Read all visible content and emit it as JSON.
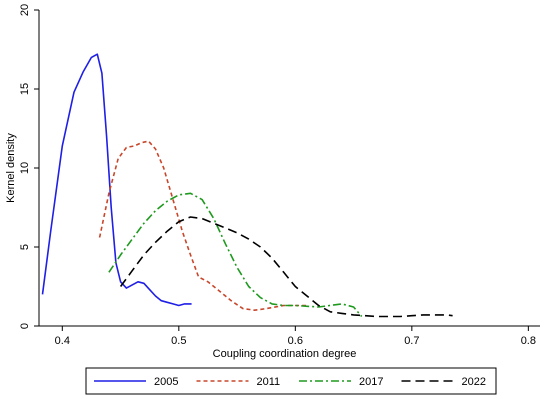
{
  "chart_data": {
    "type": "line",
    "title": "",
    "xlabel": "Coupling coordination degree",
    "ylabel": "Kernel density",
    "xlim": [
      0.38,
      0.81
    ],
    "ylim": [
      0,
      20
    ],
    "xticks": [
      "0.4",
      "0.5",
      "0.6",
      "0.7",
      "0.8"
    ],
    "yticks": [
      "0",
      "5",
      "10",
      "15",
      "20"
    ],
    "xtick_values": [
      0.4,
      0.5,
      0.6,
      0.7,
      0.8
    ],
    "ytick_values": [
      0,
      5,
      10,
      15,
      20
    ],
    "grid": false,
    "legend_position": "bottom",
    "series": [
      {
        "name": "2005",
        "color": "#1f1fe6",
        "dash": "solid",
        "x": [
          0.383,
          0.39,
          0.4,
          0.41,
          0.418,
          0.425,
          0.43,
          0.434,
          0.438,
          0.442,
          0.446,
          0.45,
          0.455,
          0.46,
          0.465,
          0.47,
          0.475,
          0.48,
          0.485,
          0.49,
          0.495,
          0.5,
          0.505,
          0.511
        ],
        "y": [
          2.0,
          6.0,
          11.4,
          14.8,
          16.1,
          17.0,
          17.2,
          16.0,
          12.0,
          7.5,
          4.0,
          2.8,
          2.4,
          2.6,
          2.8,
          2.7,
          2.3,
          1.9,
          1.6,
          1.5,
          1.4,
          1.3,
          1.4,
          1.4
        ]
      },
      {
        "name": "2011",
        "color": "#c8472b",
        "dash": "4,3",
        "x": [
          0.432,
          0.44,
          0.448,
          0.455,
          0.462,
          0.468,
          0.474,
          0.48,
          0.487,
          0.495,
          0.503,
          0.51,
          0.517,
          0.525,
          0.535,
          0.545,
          0.555,
          0.565,
          0.575,
          0.59,
          0.6,
          0.61
        ],
        "y": [
          5.6,
          8.4,
          10.6,
          11.3,
          11.4,
          11.6,
          11.7,
          11.2,
          10.0,
          8.0,
          6.0,
          4.5,
          3.1,
          2.8,
          2.2,
          1.6,
          1.1,
          1.0,
          1.1,
          1.3,
          1.3,
          1.3
        ]
      },
      {
        "name": "2017",
        "color": "#1e9a1e",
        "dash": "8,3,2,3",
        "x": [
          0.44,
          0.45,
          0.46,
          0.47,
          0.48,
          0.49,
          0.5,
          0.51,
          0.52,
          0.53,
          0.54,
          0.55,
          0.56,
          0.57,
          0.58,
          0.59,
          0.6,
          0.62,
          0.64,
          0.65,
          0.657
        ],
        "y": [
          3.4,
          4.5,
          5.5,
          6.5,
          7.3,
          7.9,
          8.3,
          8.4,
          8.0,
          6.8,
          5.2,
          3.7,
          2.5,
          1.8,
          1.4,
          1.3,
          1.3,
          1.2,
          1.4,
          1.2,
          0.6
        ]
      },
      {
        "name": "2022",
        "color": "#000000",
        "dash": "9,5",
        "x": [
          0.45,
          0.46,
          0.47,
          0.48,
          0.49,
          0.5,
          0.51,
          0.52,
          0.53,
          0.54,
          0.55,
          0.56,
          0.57,
          0.58,
          0.59,
          0.6,
          0.61,
          0.62,
          0.63,
          0.64,
          0.65,
          0.66,
          0.67,
          0.68,
          0.69,
          0.7,
          0.71,
          0.72,
          0.73,
          0.735
        ],
        "y": [
          2.5,
          3.5,
          4.5,
          5.3,
          6.0,
          6.6,
          6.9,
          6.8,
          6.5,
          6.2,
          5.9,
          5.5,
          5.0,
          4.3,
          3.4,
          2.5,
          1.9,
          1.3,
          0.9,
          0.8,
          0.7,
          0.65,
          0.6,
          0.6,
          0.6,
          0.65,
          0.7,
          0.7,
          0.7,
          0.65
        ]
      }
    ]
  }
}
